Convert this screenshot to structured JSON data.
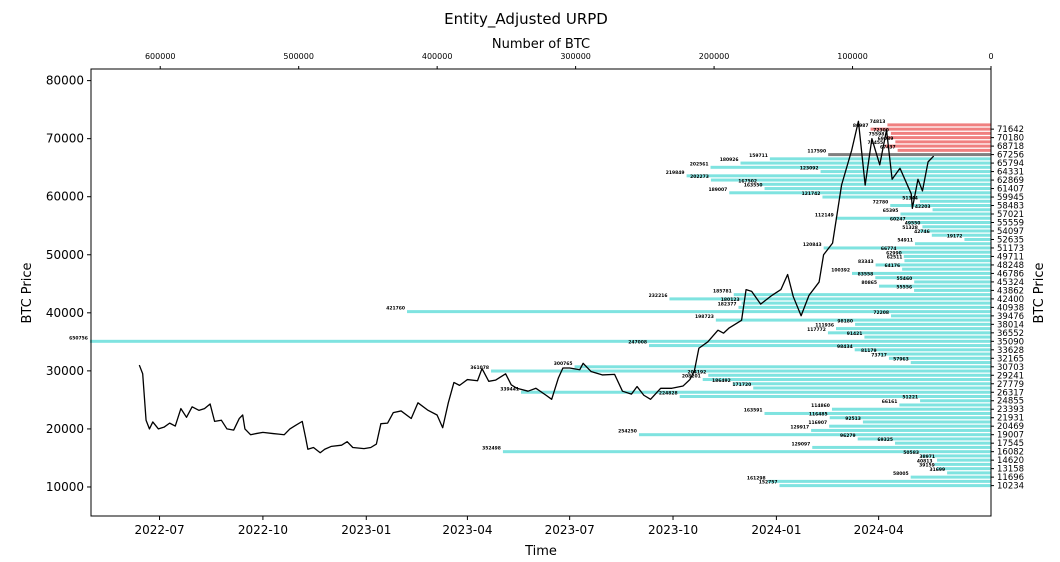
{
  "chart_data": {
    "type": "bar",
    "title": "Entity_Adjusted URPD",
    "xlabel": "Time",
    "ylabel": "BTC Price",
    "top_xlabel": "Number of BTC",
    "right_ylabel": "BTC Price",
    "ylim": [
      5000,
      82000
    ],
    "xlim": [
      "2022-05-01",
      "2024-07-10"
    ],
    "top_xlim": [
      650000,
      0
    ],
    "yticks": [
      10000,
      20000,
      30000,
      40000,
      50000,
      60000,
      70000,
      80000
    ],
    "xticks": [
      {
        "date": "2022-07-01",
        "label": "2022-07"
      },
      {
        "date": "2022-10-01",
        "label": "2022-10"
      },
      {
        "date": "2023-01-01",
        "label": "2023-01"
      },
      {
        "date": "2023-04-01",
        "label": "2023-04"
      },
      {
        "date": "2023-07-01",
        "label": "2023-07"
      },
      {
        "date": "2023-10-01",
        "label": "2023-10"
      },
      {
        "date": "2024-01-01",
        "label": "2024-01"
      },
      {
        "date": "2024-04-01",
        "label": "2024-04"
      }
    ],
    "top_xticks": [
      {
        "value": 600000,
        "label": "600000"
      },
      {
        "value": 500000,
        "label": "500000"
      },
      {
        "value": 400000,
        "label": "400000"
      },
      {
        "value": 300000,
        "label": "300000"
      },
      {
        "value": 200000,
        "label": "200000"
      },
      {
        "value": 100000,
        "label": "100000"
      },
      {
        "value": 0,
        "label": "0"
      }
    ],
    "right_yticks": [
      71642,
      70180,
      68718,
      67256,
      65794,
      64331,
      62869,
      61407,
      59945,
      58483,
      57021,
      55559,
      54097,
      52635,
      51173,
      49711,
      48248,
      46786,
      45324,
      43862,
      42400,
      40938,
      39476,
      38014,
      36552,
      35090,
      33628,
      32165,
      30703,
      29241,
      27779,
      26317,
      24855,
      23393,
      21931,
      20469,
      19007,
      17545,
      16082,
      14620,
      13158,
      11696,
      10234
    ],
    "colors": {
      "above": "#f08080",
      "below": "#7fe3e0",
      "current": "#808080",
      "price_line": "#000000"
    },
    "bars": [
      {
        "price": 72373,
        "btc": 74813,
        "group": "above"
      },
      {
        "price": 71642,
        "btc": 86987,
        "group": "above"
      },
      {
        "price": 70911,
        "btc": 72300,
        "group": "above"
      },
      {
        "price": 70180,
        "btc": 75598,
        "group": "above"
      },
      {
        "price": 69449,
        "btc": 69089,
        "group": "above"
      },
      {
        "price": 68718,
        "btc": 76455,
        "group": "above"
      },
      {
        "price": 67987,
        "btc": 67437,
        "group": "above"
      },
      {
        "price": 67256,
        "btc": 117590,
        "group": "current"
      },
      {
        "price": 66525,
        "btc": 159711,
        "group": "below"
      },
      {
        "price": 65794,
        "btc": 180926,
        "group": "below"
      },
      {
        "price": 65063,
        "btc": 202561,
        "group": "below"
      },
      {
        "price": 64331,
        "btc": 123092,
        "group": "below"
      },
      {
        "price": 63600,
        "btc": 219849,
        "group": "below"
      },
      {
        "price": 62869,
        "btc": 202273,
        "group": "below"
      },
      {
        "price": 62138,
        "btc": 167502,
        "group": "below"
      },
      {
        "price": 61407,
        "btc": 163550,
        "group": "below"
      },
      {
        "price": 60676,
        "btc": 189007,
        "group": "below"
      },
      {
        "price": 59945,
        "btc": 121742,
        "group": "below"
      },
      {
        "price": 59214,
        "btc": 51344,
        "group": "below"
      },
      {
        "price": 58483,
        "btc": 72780,
        "group": "below"
      },
      {
        "price": 57752,
        "btc": 42203,
        "group": "below"
      },
      {
        "price": 57021,
        "btc": 65395,
        "group": "below"
      },
      {
        "price": 56290,
        "btc": 112149,
        "group": "below"
      },
      {
        "price": 55559,
        "btc": 60247,
        "group": "below"
      },
      {
        "price": 54828,
        "btc": 49550,
        "group": "below"
      },
      {
        "price": 54097,
        "btc": 51328,
        "group": "below"
      },
      {
        "price": 53366,
        "btc": 42746,
        "group": "below"
      },
      {
        "price": 52635,
        "btc": 19172,
        "group": "below"
      },
      {
        "price": 51904,
        "btc": 54911,
        "group": "below"
      },
      {
        "price": 51173,
        "btc": 120843,
        "group": "below"
      },
      {
        "price": 50442,
        "btc": 66774,
        "group": "below"
      },
      {
        "price": 49711,
        "btc": 62990,
        "group": "below"
      },
      {
        "price": 48980,
        "btc": 62511,
        "group": "below"
      },
      {
        "price": 48248,
        "btc": 83343,
        "group": "below"
      },
      {
        "price": 47517,
        "btc": 64176,
        "group": "below"
      },
      {
        "price": 46786,
        "btc": 100392,
        "group": "below"
      },
      {
        "price": 46055,
        "btc": 83558,
        "group": "below"
      },
      {
        "price": 45324,
        "btc": 55460,
        "group": "below"
      },
      {
        "price": 44593,
        "btc": 80865,
        "group": "below"
      },
      {
        "price": 43862,
        "btc": 55556,
        "group": "below"
      },
      {
        "price": 43131,
        "btc": 185781,
        "group": "below"
      },
      {
        "price": 42400,
        "btc": 232216,
        "group": "below"
      },
      {
        "price": 41669,
        "btc": 180123,
        "group": "below"
      },
      {
        "price": 40938,
        "btc": 182377,
        "group": "below"
      },
      {
        "price": 40207,
        "btc": 421760,
        "group": "below"
      },
      {
        "price": 39476,
        "btc": 72208,
        "group": "below"
      },
      {
        "price": 38745,
        "btc": 198723,
        "group": "below"
      },
      {
        "price": 38014,
        "btc": 98180,
        "group": "below"
      },
      {
        "price": 37283,
        "btc": 111936,
        "group": "below"
      },
      {
        "price": 36552,
        "btc": 117772,
        "group": "below"
      },
      {
        "price": 35821,
        "btc": 91421,
        "group": "below"
      },
      {
        "price": 35090,
        "btc": 650756,
        "group": "below"
      },
      {
        "price": 34359,
        "btc": 247008,
        "group": "below"
      },
      {
        "price": 33628,
        "btc": 98434,
        "group": "below"
      },
      {
        "price": 32897,
        "btc": 81179,
        "group": "below"
      },
      {
        "price": 32165,
        "btc": 73717,
        "group": "below"
      },
      {
        "price": 31434,
        "btc": 57963,
        "group": "below"
      },
      {
        "price": 30703,
        "btc": 300765,
        "group": "below"
      },
      {
        "price": 29972,
        "btc": 361078,
        "group": "below"
      },
      {
        "price": 29241,
        "btc": 204192,
        "group": "below"
      },
      {
        "price": 28510,
        "btc": 208201,
        "group": "below"
      },
      {
        "price": 27779,
        "btc": 186492,
        "group": "below"
      },
      {
        "price": 27048,
        "btc": 171720,
        "group": "below"
      },
      {
        "price": 26317,
        "btc": 339441,
        "group": "below"
      },
      {
        "price": 25586,
        "btc": 224828,
        "group": "below"
      },
      {
        "price": 24855,
        "btc": 51221,
        "group": "below"
      },
      {
        "price": 24124,
        "btc": 66161,
        "group": "below"
      },
      {
        "price": 23393,
        "btc": 114860,
        "group": "below"
      },
      {
        "price": 22662,
        "btc": 163591,
        "group": "below"
      },
      {
        "price": 21931,
        "btc": 116485,
        "group": "below"
      },
      {
        "price": 21200,
        "btc": 92513,
        "group": "below"
      },
      {
        "price": 20469,
        "btc": 116907,
        "group": "below"
      },
      {
        "price": 19738,
        "btc": 129917,
        "group": "below"
      },
      {
        "price": 19007,
        "btc": 254250,
        "group": "below"
      },
      {
        "price": 18276,
        "btc": 96279,
        "group": "below"
      },
      {
        "price": 17545,
        "btc": 69325,
        "group": "below"
      },
      {
        "price": 16813,
        "btc": 129097,
        "group": "below"
      },
      {
        "price": 16082,
        "btc": 352498,
        "group": "below"
      },
      {
        "price": 15351,
        "btc": 50583,
        "group": "below"
      },
      {
        "price": 14620,
        "btc": 38971,
        "group": "below"
      },
      {
        "price": 13889,
        "btc": 40813,
        "group": "below"
      },
      {
        "price": 13158,
        "btc": 39159,
        "group": "below"
      },
      {
        "price": 12427,
        "btc": 31699,
        "group": "below"
      },
      {
        "price": 11696,
        "btc": 58005,
        "group": "below"
      },
      {
        "price": 10965,
        "btc": 161298,
        "group": "below"
      },
      {
        "price": 10234,
        "btc": 152757,
        "group": "below"
      }
    ],
    "price_series": {
      "name": "",
      "points": [
        [
          "2022-06-13",
          31000
        ],
        [
          "2022-06-16",
          29500
        ],
        [
          "2022-06-19",
          21500
        ],
        [
          "2022-06-22",
          20000
        ],
        [
          "2022-06-25",
          21200
        ],
        [
          "2022-06-30",
          20000
        ],
        [
          "2022-07-05",
          20300
        ],
        [
          "2022-07-10",
          21000
        ],
        [
          "2022-07-15",
          20500
        ],
        [
          "2022-07-20",
          23500
        ],
        [
          "2022-07-25",
          22000
        ],
        [
          "2022-07-30",
          23800
        ],
        [
          "2022-08-05",
          23200
        ],
        [
          "2022-08-10",
          23500
        ],
        [
          "2022-08-15",
          24300
        ],
        [
          "2022-08-19",
          21300
        ],
        [
          "2022-08-25",
          21500
        ],
        [
          "2022-08-30",
          20000
        ],
        [
          "2022-09-05",
          19800
        ],
        [
          "2022-09-10",
          21800
        ],
        [
          "2022-09-13",
          22400
        ],
        [
          "2022-09-15",
          20000
        ],
        [
          "2022-09-20",
          19000
        ],
        [
          "2022-09-25",
          19200
        ],
        [
          "2022-10-01",
          19400
        ],
        [
          "2022-10-10",
          19200
        ],
        [
          "2022-10-15",
          19100
        ],
        [
          "2022-10-20",
          19000
        ],
        [
          "2022-10-25",
          20000
        ],
        [
          "2022-10-30",
          20600
        ],
        [
          "2022-11-05",
          21300
        ],
        [
          "2022-11-08",
          18500
        ],
        [
          "2022-11-10",
          16500
        ],
        [
          "2022-11-15",
          16800
        ],
        [
          "2022-11-21",
          15900
        ],
        [
          "2022-11-25",
          16500
        ],
        [
          "2022-12-01",
          17000
        ],
        [
          "2022-12-10",
          17200
        ],
        [
          "2022-12-15",
          17800
        ],
        [
          "2022-12-20",
          16800
        ],
        [
          "2022-12-30",
          16600
        ],
        [
          "2023-01-05",
          16800
        ],
        [
          "2023-01-10",
          17400
        ],
        [
          "2023-01-14",
          20900
        ],
        [
          "2023-01-20",
          21000
        ],
        [
          "2023-01-25",
          22800
        ],
        [
          "2023-02-01",
          23100
        ],
        [
          "2023-02-10",
          21800
        ],
        [
          "2023-02-16",
          24500
        ],
        [
          "2023-02-25",
          23200
        ],
        [
          "2023-03-05",
          22400
        ],
        [
          "2023-03-10",
          20200
        ],
        [
          "2023-03-15",
          24500
        ],
        [
          "2023-03-20",
          28000
        ],
        [
          "2023-03-25",
          27500
        ],
        [
          "2023-04-01",
          28500
        ],
        [
          "2023-04-10",
          28300
        ],
        [
          "2023-04-14",
          30400
        ],
        [
          "2023-04-20",
          28200
        ],
        [
          "2023-04-26",
          28400
        ],
        [
          "2023-05-05",
          29500
        ],
        [
          "2023-05-10",
          27600
        ],
        [
          "2023-05-15",
          27000
        ],
        [
          "2023-05-25",
          26500
        ],
        [
          "2023-06-01",
          27000
        ],
        [
          "2023-06-10",
          25800
        ],
        [
          "2023-06-15",
          25100
        ],
        [
          "2023-06-21",
          28800
        ],
        [
          "2023-06-25",
          30500
        ],
        [
          "2023-07-01",
          30500
        ],
        [
          "2023-07-10",
          30200
        ],
        [
          "2023-07-13",
          31300
        ],
        [
          "2023-07-20",
          29900
        ],
        [
          "2023-07-30",
          29300
        ],
        [
          "2023-08-10",
          29400
        ],
        [
          "2023-08-17",
          26500
        ],
        [
          "2023-08-25",
          26000
        ],
        [
          "2023-08-30",
          27300
        ],
        [
          "2023-09-05",
          25800
        ],
        [
          "2023-09-11",
          25100
        ],
        [
          "2023-09-20",
          27000
        ],
        [
          "2023-09-30",
          27000
        ],
        [
          "2023-10-10",
          27400
        ],
        [
          "2023-10-16",
          28500
        ],
        [
          "2023-10-20",
          30000
        ],
        [
          "2023-10-24",
          33900
        ],
        [
          "2023-11-01",
          35000
        ],
        [
          "2023-11-10",
          37000
        ],
        [
          "2023-11-15",
          36500
        ],
        [
          "2023-11-20",
          37400
        ],
        [
          "2023-12-01",
          38700
        ],
        [
          "2023-12-05",
          44000
        ],
        [
          "2023-12-10",
          43700
        ],
        [
          "2023-12-18",
          41500
        ],
        [
          "2023-12-28",
          43000
        ],
        [
          "2024-01-05",
          44000
        ],
        [
          "2024-01-11",
          46600
        ],
        [
          "2024-01-16",
          42800
        ],
        [
          "2024-01-23",
          39500
        ],
        [
          "2024-01-30",
          43000
        ],
        [
          "2024-02-08",
          45300
        ],
        [
          "2024-02-12",
          50000
        ],
        [
          "2024-02-20",
          52000
        ],
        [
          "2024-02-28",
          62000
        ],
        [
          "2024-03-05",
          66000
        ],
        [
          "2024-03-08",
          68000
        ],
        [
          "2024-03-14",
          73000
        ],
        [
          "2024-03-20",
          62000
        ],
        [
          "2024-03-26",
          70000
        ],
        [
          "2024-04-02",
          65500
        ],
        [
          "2024-04-08",
          71500
        ],
        [
          "2024-04-13",
          63000
        ],
        [
          "2024-04-20",
          64900
        ],
        [
          "2024-04-30",
          60500
        ],
        [
          "2024-05-01",
          58000
        ],
        [
          "2024-05-06",
          63000
        ],
        [
          "2024-05-10",
          61000
        ],
        [
          "2024-05-15",
          66000
        ],
        [
          "2024-05-20",
          67000
        ]
      ]
    }
  }
}
